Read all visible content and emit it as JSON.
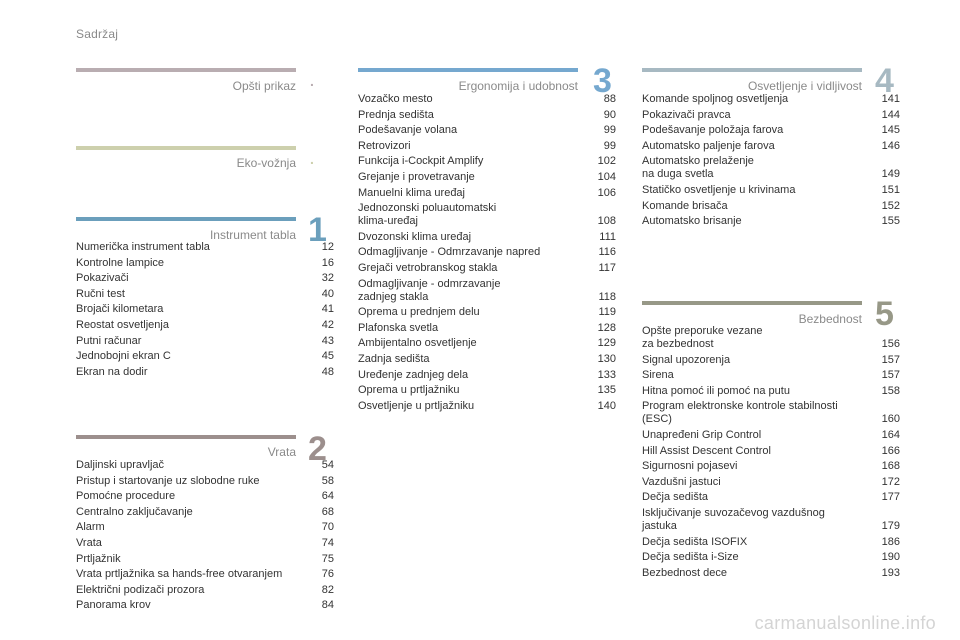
{
  "header": {
    "title": "Sadržaj"
  },
  "colors": {
    "opsti": "#b9adb1",
    "eko": "#cdd0ad",
    "instrument": "#6b9fbc",
    "vrata": "#9c8f8d",
    "ergonomija": "#75a8cf",
    "osvetljenje": "#a7b9c2",
    "bezbednost": "#979887"
  },
  "sections": {
    "opsti": {
      "title": "Opšti prikaz",
      "number": ".",
      "entries": []
    },
    "eko": {
      "title": "Eko-vožnja",
      "number": ".",
      "entries": []
    },
    "instrument": {
      "title": "Instrument tabla",
      "number": "1",
      "entries": [
        {
          "label": "Numerička instrument tabla",
          "page": "12"
        },
        {
          "label": "Kontrolne lampice",
          "page": "16"
        },
        {
          "label": "Pokazivači",
          "page": "32"
        },
        {
          "label": "Ručni test",
          "page": "40"
        },
        {
          "label": "Brojači kilometara",
          "page": "41"
        },
        {
          "label": "Reostat osvetljenja",
          "page": "42"
        },
        {
          "label": "Putni računar",
          "page": "43"
        },
        {
          "label": "Jednobojni ekran C",
          "page": "45"
        },
        {
          "label": "Ekran na dodir",
          "page": "48"
        }
      ]
    },
    "vrata": {
      "title": "Vrata",
      "number": "2",
      "entries": [
        {
          "label": "Daljinski upravljač",
          "page": "54"
        },
        {
          "label": "Pristup i startovanje uz slobodne ruke",
          "page": "58"
        },
        {
          "label": "Pomoćne procedure",
          "page": "64"
        },
        {
          "label": "Centralno zaključavanje",
          "page": "68"
        },
        {
          "label": "Alarm",
          "page": "70"
        },
        {
          "label": "Vrata",
          "page": "74"
        },
        {
          "label": "Prtljažnik",
          "page": "75"
        },
        {
          "label": "Vrata prtljažnika sa hands-free otvaranjem",
          "page": "76"
        },
        {
          "label": "Električni podizači prozora",
          "page": "82"
        },
        {
          "label": "Panorama krov",
          "page": "84"
        }
      ]
    },
    "ergonomija": {
      "title": "Ergonomija i udobnost",
      "number": "3",
      "entries": [
        {
          "label": "Vozačko mesto",
          "page": "88"
        },
        {
          "label": "Prednja sedišta",
          "page": "90"
        },
        {
          "label": "Podešavanje volana",
          "page": "99"
        },
        {
          "label": "Retrovizori",
          "page": "99"
        },
        {
          "label": "Funkcija i-Cockpit Amplify",
          "page": "102"
        },
        {
          "label": "Grejanje i provetravanje",
          "page": "104"
        },
        {
          "label": "Manuelni klima uređaj",
          "page": "106"
        },
        {
          "label": "Jednozonski poluautomatski\n    klima-uređaj",
          "page": "108"
        },
        {
          "label": "Dvozonski klima uređaj",
          "page": "111"
        },
        {
          "label": "Odmagljivanje - Odmrzavanje napred",
          "page": "116"
        },
        {
          "label": "Grejači vetrobranskog stakla",
          "page": "117"
        },
        {
          "label": "Odmagljivanje - odmrzavanje\n    zadnjeg stakla",
          "page": "118"
        },
        {
          "label": "Oprema u prednjem delu",
          "page": "119"
        },
        {
          "label": "Plafonska svetla",
          "page": "128"
        },
        {
          "label": "Ambijentalno osvetljenje",
          "page": "129"
        },
        {
          "label": "Zadnja sedišta",
          "page": "130"
        },
        {
          "label": "Uređenje zadnjeg dela",
          "page": "133"
        },
        {
          "label": "Oprema u prtljažniku",
          "page": "135"
        },
        {
          "label": "Osvetljenje u prtljažniku",
          "page": "140"
        }
      ]
    },
    "osvetljenje": {
      "title": "Osvetljenje i vidljivost",
      "number": "4",
      "entries": [
        {
          "label": "Komande spoljnog osvetljenja",
          "page": "141"
        },
        {
          "label": "Pokazivači pravca",
          "page": "144"
        },
        {
          "label": "Podešavanje položaja farova",
          "page": "145"
        },
        {
          "label": "Automatsko paljenje farova",
          "page": "146"
        },
        {
          "label": "Automatsko prelaženje\n    na duga svetla",
          "page": "149"
        },
        {
          "label": "Statičko osvetljenje u krivinama",
          "page": "151"
        },
        {
          "label": "Komande brisača",
          "page": "152"
        },
        {
          "label": "Automatsko brisanje",
          "page": "155"
        }
      ]
    },
    "bezbednost": {
      "title": "Bezbednost",
      "number": "5",
      "entries": [
        {
          "label": "Opšte preporuke vezane\n    za bezbednost",
          "page": "156"
        },
        {
          "label": "Signal upozorenja",
          "page": "157"
        },
        {
          "label": "Sirena",
          "page": "157"
        },
        {
          "label": "Hitna pomoć ili pomoć na putu",
          "page": "158"
        },
        {
          "label": "Program elektronske kontrole stabilnosti\n    (ESC)",
          "page": "160"
        },
        {
          "label": "Unapređeni Grip Control",
          "page": "164"
        },
        {
          "label": "Hill Assist Descent Control",
          "page": "166"
        },
        {
          "label": "Sigurnosni pojasevi",
          "page": "168"
        },
        {
          "label": "Vazdušni jastuci",
          "page": "172"
        },
        {
          "label": "Dečja sedišta",
          "page": "177"
        },
        {
          "label": "Isključivanje suvozačevog vazdušnog\n    jastuka",
          "page": "179"
        },
        {
          "label": "Dečja sedišta ISOFIX",
          "page": "186"
        },
        {
          "label": "Dečja sedišta i-Size",
          "page": "190"
        },
        {
          "label": "Bezbednost dece",
          "page": "193"
        }
      ]
    }
  },
  "watermark": "carmanualsonline.info"
}
